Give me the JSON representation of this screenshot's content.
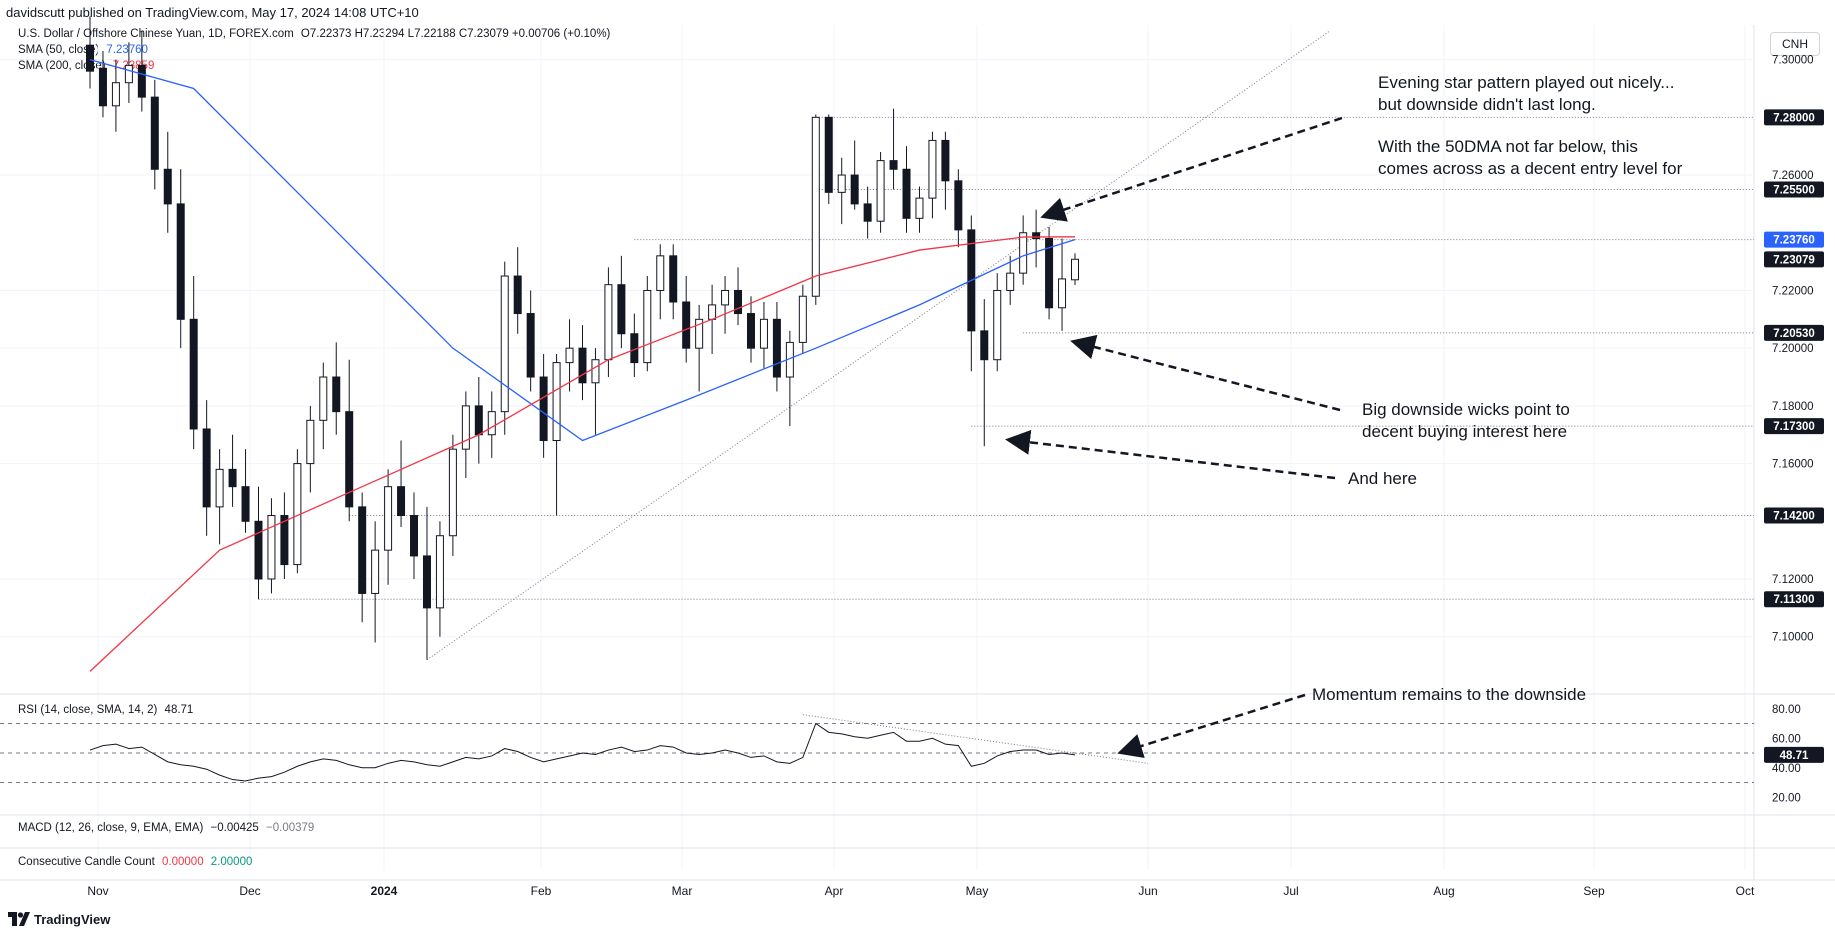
{
  "header": {
    "published": "davidscutt published on TradingView.com, May 17, 2024 14:08 UTC+10"
  },
  "legend": {
    "title": "U.S. Dollar / Offshore Chinese Yuan, 1D, FOREX.com",
    "ohlc": "O7.22373  H7.23294  L7.22188  C7.23079  +0.00706 (+0.10%)",
    "sma50_label": "SMA (50, close)",
    "sma50_value": "7.23760",
    "sma200_label": "SMA (200, close)",
    "sma200_value": "7.23859"
  },
  "currency_button": "CNH",
  "rsi_pane": {
    "label": "RSI (14, close, SMA, 14, 2)",
    "value": "48.71",
    "ticks": [
      "80.00",
      "60.00",
      "40.00",
      "20.00"
    ],
    "current_tag": "48.71"
  },
  "macd_pane": {
    "label": "MACD (12, 26, close, 9, EMA, EMA)",
    "v1": "−0.00425",
    "v2": "−0.00379"
  },
  "ccc_pane": {
    "label": "Consecutive Candle Count",
    "v1": "0.00000",
    "v2": "2.00000"
  },
  "annotations": {
    "evening_star_1": "Evening star pattern played out nicely...",
    "evening_star_2": "but downside didn't last long.",
    "entry_1": "With the 50DMA not far below, this",
    "entry_2": "comes across as a decent entry level for",
    "wicks_1": "Big downside wicks point to",
    "wicks_2": "decent buying interest here",
    "and_here": "And here",
    "momentum": "Momentum remains to the downside"
  },
  "footer": {
    "brand": "TradingView"
  },
  "colors": {
    "sma50": "#2962ff",
    "sma200": "#f23645",
    "candle": "#131722",
    "grid": "#f0f3fa",
    "tag_dark": "#131722",
    "tag_blue": "#2962ff"
  },
  "chart_data": {
    "type": "candlestick",
    "title": "U.S. Dollar / Offshore Chinese Yuan, 1D, FOREX.com",
    "ylim": [
      7.085,
      7.312
    ],
    "y_ticks": [
      "7.30000",
      "7.26000",
      "7.22000",
      "7.20000",
      "7.18000",
      "7.16000",
      "7.12000",
      "7.10000"
    ],
    "x_ticks": [
      "Nov",
      "Dec",
      "2024",
      "Feb",
      "Mar",
      "Apr",
      "May",
      "Jun",
      "Jul",
      "Aug",
      "Sep",
      "Oct"
    ],
    "level_tags": [
      {
        "value": 7.28,
        "label": "7.28000"
      },
      {
        "value": 7.255,
        "label": "7.25500"
      },
      {
        "value": 7.2376,
        "label": "7.23760",
        "kind": "sma50"
      },
      {
        "value": 7.23079,
        "label": "7.23079",
        "kind": "last"
      },
      {
        "value": 7.2053,
        "label": "7.20530"
      },
      {
        "value": 7.173,
        "label": "7.17300"
      },
      {
        "value": 7.142,
        "label": "7.14200"
      },
      {
        "value": 7.113,
        "label": "7.11300"
      }
    ],
    "candles_ohlc": [
      [
        7.305,
        7.315,
        7.29,
        7.296
      ],
      [
        7.297,
        7.303,
        7.28,
        7.284
      ],
      [
        7.284,
        7.3,
        7.275,
        7.292
      ],
      [
        7.292,
        7.306,
        7.285,
        7.298
      ],
      [
        7.298,
        7.31,
        7.282,
        7.287
      ],
      [
        7.287,
        7.293,
        7.255,
        7.262
      ],
      [
        7.262,
        7.275,
        7.24,
        7.25
      ],
      [
        7.25,
        7.262,
        7.2,
        7.21
      ],
      [
        7.21,
        7.225,
        7.165,
        7.172
      ],
      [
        7.172,
        7.182,
        7.135,
        7.145
      ],
      [
        7.145,
        7.165,
        7.132,
        7.158
      ],
      [
        7.158,
        7.17,
        7.145,
        7.152
      ],
      [
        7.152,
        7.165,
        7.136,
        7.14
      ],
      [
        7.14,
        7.152,
        7.113,
        7.12
      ],
      [
        7.12,
        7.148,
        7.115,
        7.142
      ],
      [
        7.142,
        7.15,
        7.12,
        7.125
      ],
      [
        7.125,
        7.165,
        7.122,
        7.16
      ],
      [
        7.16,
        7.18,
        7.15,
        7.175
      ],
      [
        7.175,
        7.195,
        7.165,
        7.19
      ],
      [
        7.19,
        7.202,
        7.17,
        7.178
      ],
      [
        7.178,
        7.196,
        7.14,
        7.145
      ],
      [
        7.145,
        7.15,
        7.105,
        7.115
      ],
      [
        7.115,
        7.14,
        7.098,
        7.13
      ],
      [
        7.13,
        7.158,
        7.118,
        7.152
      ],
      [
        7.152,
        7.168,
        7.138,
        7.142
      ],
      [
        7.142,
        7.15,
        7.12,
        7.128
      ],
      [
        7.128,
        7.145,
        7.092,
        7.11
      ],
      [
        7.11,
        7.14,
        7.1,
        7.135
      ],
      [
        7.135,
        7.17,
        7.128,
        7.165
      ],
      [
        7.165,
        7.185,
        7.155,
        7.18
      ],
      [
        7.18,
        7.19,
        7.16,
        7.17
      ],
      [
        7.17,
        7.185,
        7.162,
        7.178
      ],
      [
        7.178,
        7.23,
        7.17,
        7.225
      ],
      [
        7.225,
        7.235,
        7.205,
        7.212
      ],
      [
        7.212,
        7.22,
        7.185,
        7.19
      ],
      [
        7.19,
        7.198,
        7.162,
        7.168
      ],
      [
        7.168,
        7.198,
        7.142,
        7.195
      ],
      [
        7.195,
        7.21,
        7.185,
        7.2
      ],
      [
        7.2,
        7.208,
        7.182,
        7.188
      ],
      [
        7.188,
        7.2,
        7.17,
        7.196
      ],
      [
        7.196,
        7.228,
        7.19,
        7.222
      ],
      [
        7.222,
        7.232,
        7.2,
        7.205
      ],
      [
        7.205,
        7.212,
        7.19,
        7.195
      ],
      [
        7.195,
        7.225,
        7.192,
        7.22
      ],
      [
        7.22,
        7.236,
        7.21,
        7.232
      ],
      [
        7.232,
        7.236,
        7.21,
        7.216
      ],
      [
        7.216,
        7.225,
        7.195,
        7.2
      ],
      [
        7.2,
        7.215,
        7.185,
        7.21
      ],
      [
        7.21,
        7.222,
        7.198,
        7.215
      ],
      [
        7.215,
        7.225,
        7.205,
        7.22
      ],
      [
        7.22,
        7.228,
        7.208,
        7.212
      ],
      [
        7.212,
        7.218,
        7.195,
        7.2
      ],
      [
        7.2,
        7.216,
        7.193,
        7.21
      ],
      [
        7.21,
        7.216,
        7.185,
        7.19
      ],
      [
        7.19,
        7.206,
        7.173,
        7.202
      ],
      [
        7.202,
        7.222,
        7.198,
        7.218
      ],
      [
        7.218,
        7.281,
        7.215,
        7.28
      ],
      [
        7.28,
        7.281,
        7.25,
        7.254
      ],
      [
        7.254,
        7.266,
        7.243,
        7.26
      ],
      [
        7.26,
        7.272,
        7.248,
        7.25
      ],
      [
        7.25,
        7.256,
        7.238,
        7.244
      ],
      [
        7.244,
        7.268,
        7.24,
        7.265
      ],
      [
        7.265,
        7.283,
        7.255,
        7.262
      ],
      [
        7.262,
        7.27,
        7.24,
        7.245
      ],
      [
        7.245,
        7.256,
        7.24,
        7.252
      ],
      [
        7.252,
        7.275,
        7.245,
        7.272
      ],
      [
        7.272,
        7.275,
        7.248,
        7.258
      ],
      [
        7.258,
        7.262,
        7.235,
        7.241
      ],
      [
        7.241,
        7.246,
        7.192,
        7.206
      ],
      [
        7.206,
        7.217,
        7.166,
        7.196
      ],
      [
        7.196,
        7.226,
        7.192,
        7.22
      ],
      [
        7.22,
        7.232,
        7.215,
        7.226
      ],
      [
        7.226,
        7.246,
        7.222,
        7.24
      ],
      [
        7.24,
        7.248,
        7.228,
        7.238
      ],
      [
        7.238,
        7.242,
        7.21,
        7.214
      ],
      [
        7.214,
        7.238,
        7.206,
        7.224
      ],
      [
        7.2237,
        7.2329,
        7.2219,
        7.2308
      ]
    ],
    "sma50": [
      [
        0,
        7.3
      ],
      [
        8,
        7.29
      ],
      [
        18,
        7.245
      ],
      [
        28,
        7.2
      ],
      [
        38,
        7.168
      ],
      [
        46,
        7.182
      ],
      [
        56,
        7.2
      ],
      [
        64,
        7.215
      ],
      [
        72,
        7.232
      ],
      [
        76,
        7.2376
      ]
    ],
    "sma200": [
      [
        0,
        7.088
      ],
      [
        10,
        7.13
      ],
      [
        20,
        7.15
      ],
      [
        30,
        7.17
      ],
      [
        40,
        7.196
      ],
      [
        48,
        7.21
      ],
      [
        56,
        7.225
      ],
      [
        64,
        7.234
      ],
      [
        72,
        7.2385
      ],
      [
        76,
        7.2386
      ]
    ],
    "support_resistance": [
      7.28,
      7.255,
      7.2376,
      7.2053,
      7.173,
      7.142,
      7.113
    ],
    "rsi": {
      "ylim": [
        10,
        90
      ],
      "bands": [
        70,
        50,
        30
      ],
      "values": [
        52,
        55,
        56,
        53,
        54,
        49,
        44,
        42,
        41,
        39,
        35,
        32,
        31,
        33,
        34,
        37,
        41,
        44,
        46,
        45,
        42,
        40,
        40,
        43,
        45,
        44,
        42,
        41,
        44,
        47,
        46,
        48,
        53,
        51,
        47,
        44,
        46,
        48,
        50,
        49,
        52,
        54,
        51,
        52,
        55,
        54,
        50,
        49,
        50,
        52,
        50,
        47,
        48,
        44,
        43,
        47,
        70,
        64,
        63,
        61,
        60,
        62,
        64,
        58,
        58,
        60,
        56,
        55,
        41,
        43,
        48,
        51,
        52,
        52,
        49,
        50,
        48.71
      ]
    }
  }
}
